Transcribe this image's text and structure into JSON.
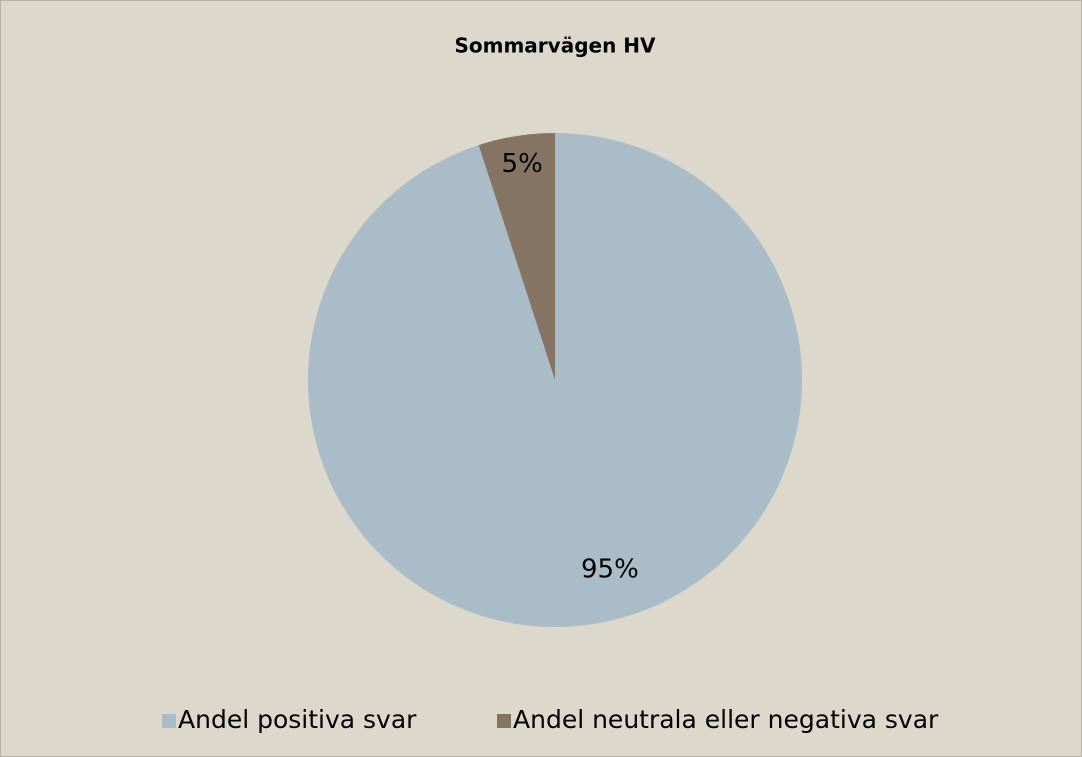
{
  "chart_data": {
    "type": "pie",
    "title": "Sommarvägen HV",
    "categories": [
      "Andel positiva svar",
      "Andel neutrala eller negativa svar"
    ],
    "values": [
      95,
      5
    ],
    "value_labels": [
      "95%",
      "5%"
    ],
    "colors": [
      "#a9bcc7",
      "#857363"
    ],
    "legend": "bottom"
  }
}
